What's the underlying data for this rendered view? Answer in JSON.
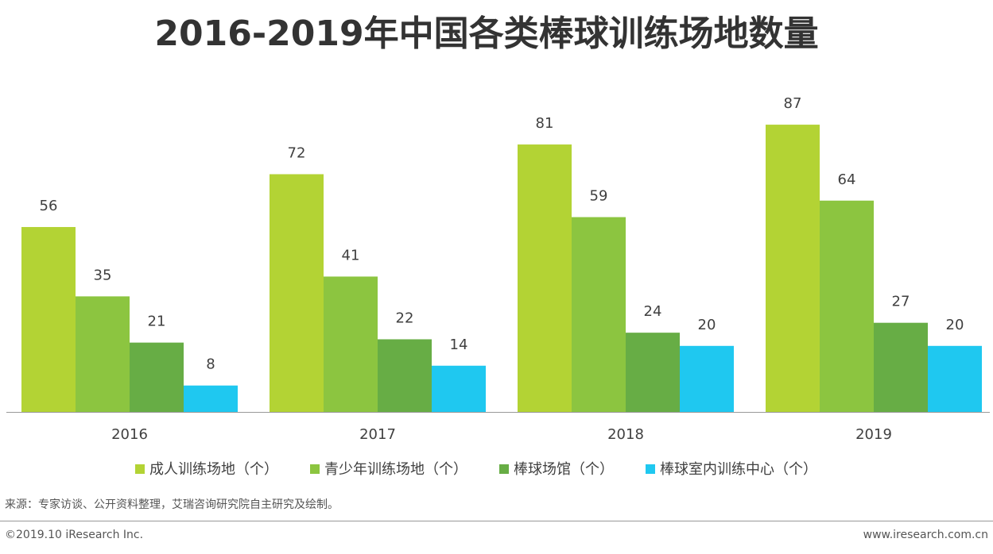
{
  "chart_data": {
    "type": "bar",
    "title": "2016-2019年中国各类棒球训练场地数量",
    "categories": [
      "2016",
      "2017",
      "2018",
      "2019"
    ],
    "series": [
      {
        "name": "成人训练场地（个）",
        "color": "#b3d334",
        "values": [
          56,
          72,
          81,
          87
        ]
      },
      {
        "name": "青少年训练场地（个）",
        "color": "#8cc540",
        "values": [
          35,
          41,
          59,
          64
        ]
      },
      {
        "name": "棒球场馆（个）",
        "color": "#67ad45",
        "values": [
          21,
          22,
          24,
          27
        ]
      },
      {
        "name": "棒球室内训练中心（个）",
        "color": "#1fc8f0",
        "values": [
          8,
          14,
          20,
          20
        ]
      }
    ]
  },
  "footer": {
    "source": "来源：专家访谈、公开资料整理，艾瑞咨询研究院自主研究及绘制。",
    "copyright": "©2019.10 iResearch Inc.",
    "url": "www.iresearch.com.cn"
  }
}
